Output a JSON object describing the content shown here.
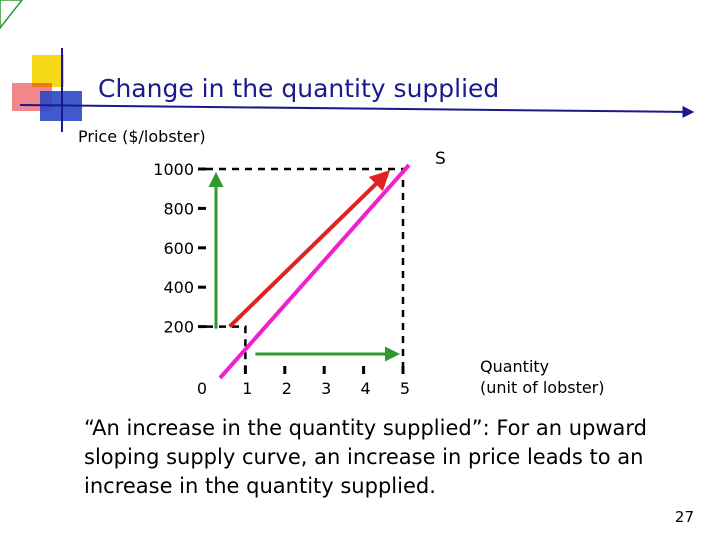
{
  "slide": {
    "title": "Change in the quantity supplied",
    "caption": "“An increase in the quantity supplied”: For an upward sloping supply curve, an increase in price leads to an increase in the quantity supplied.",
    "page_number": "27",
    "decor_colors": [
      "#f5d816",
      "#e8242c",
      "#2a48c8"
    ]
  },
  "chart_data": {
    "type": "line",
    "title": "",
    "ylabel": "Price ($/lobster)",
    "xlabel": "Quantity\n(unit of lobster)",
    "x_ticks": [
      "0",
      "1",
      "2",
      "3",
      "4",
      "5"
    ],
    "y_ticks": [
      "200",
      "400",
      "600",
      "800",
      "1000"
    ],
    "xlim": [
      0,
      5.5
    ],
    "ylim": [
      0,
      1000
    ],
    "series": [
      {
        "name": "S",
        "color": "#ee22cc",
        "points": [
          [
            0,
            0
          ],
          [
            5,
            1000
          ]
        ]
      }
    ],
    "movement_arrow": {
      "color": "#e02222",
      "from": [
        0.6,
        200
      ],
      "to": [
        4.6,
        980
      ]
    },
    "reference_points": [
      {
        "x": 1,
        "y": 200
      },
      {
        "x": 5,
        "y": 1000
      }
    ],
    "change_arrows": [
      {
        "axis": "y",
        "color": "#2e9a2e",
        "from": 200,
        "to": 1000
      },
      {
        "axis": "x",
        "color": "#2e9a2e",
        "from": 1,
        "to": 5
      }
    ]
  }
}
